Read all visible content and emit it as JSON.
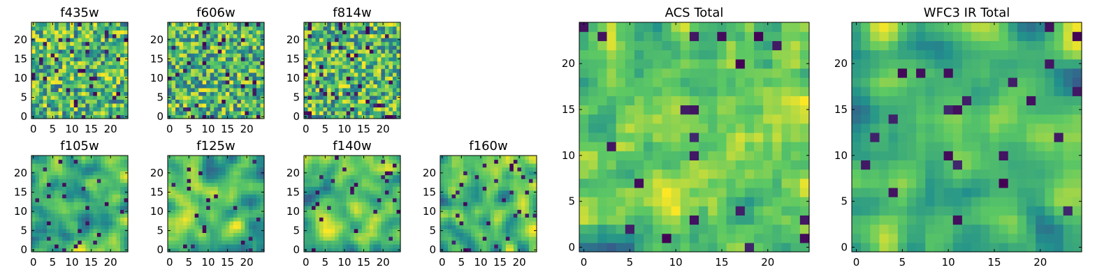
{
  "chart_data": [
    {
      "type": "heatmap",
      "title": "f435w",
      "grid": "25x25",
      "xlim": [
        0,
        24
      ],
      "ylim": [
        0,
        24
      ],
      "xticks": [
        "0",
        "5",
        "10",
        "15",
        "20"
      ],
      "yticks": [
        "0",
        "5",
        "10",
        "15",
        "20"
      ],
      "seed": 11,
      "smooth": 0,
      "dark_frac": 0.05
    },
    {
      "type": "heatmap",
      "title": "f606w",
      "grid": "25x25",
      "xlim": [
        0,
        24
      ],
      "ylim": [
        0,
        24
      ],
      "xticks": [
        "0",
        "5",
        "10",
        "15",
        "20"
      ],
      "yticks": [
        "0",
        "5",
        "10",
        "15",
        "20"
      ],
      "seed": 23,
      "smooth": 0,
      "dark_frac": 0.05
    },
    {
      "type": "heatmap",
      "title": "f814w",
      "grid": "25x25",
      "xlim": [
        0,
        24
      ],
      "ylim": [
        0,
        24
      ],
      "xticks": [
        "0",
        "5",
        "10",
        "15",
        "20"
      ],
      "yticks": [
        "0",
        "5",
        "10",
        "15",
        "20"
      ],
      "seed": 37,
      "smooth": 0,
      "dark_frac": 0.05
    },
    {
      "type": "heatmap",
      "title": "f105w",
      "grid": "25x25",
      "xlim": [
        0,
        24
      ],
      "ylim": [
        0,
        24
      ],
      "xticks": [
        "0",
        "5",
        "10",
        "15",
        "20"
      ],
      "yticks": [
        "0",
        "5",
        "10",
        "15",
        "20"
      ],
      "seed": 41,
      "smooth": 2,
      "dark_frac": 0.04
    },
    {
      "type": "heatmap",
      "title": "f125w",
      "grid": "25x25",
      "xlim": [
        0,
        24
      ],
      "ylim": [
        0,
        24
      ],
      "xticks": [
        "0",
        "5",
        "10",
        "15",
        "20"
      ],
      "yticks": [
        "0",
        "5",
        "10",
        "15",
        "20"
      ],
      "seed": 53,
      "smooth": 2,
      "dark_frac": 0.04
    },
    {
      "type": "heatmap",
      "title": "f140w",
      "grid": "25x25",
      "xlim": [
        0,
        24
      ],
      "ylim": [
        0,
        24
      ],
      "xticks": [
        "0",
        "5",
        "10",
        "15",
        "20"
      ],
      "yticks": [
        "0",
        "5",
        "10",
        "15",
        "20"
      ],
      "seed": 67,
      "smooth": 2,
      "dark_frac": 0.04
    },
    {
      "type": "heatmap",
      "title": "f160w",
      "grid": "25x25",
      "xlim": [
        0,
        24
      ],
      "ylim": [
        0,
        24
      ],
      "xticks": [
        "0",
        "5",
        "10",
        "15",
        "20"
      ],
      "yticks": [
        "0",
        "5",
        "10",
        "15",
        "20"
      ],
      "seed": 79,
      "smooth": 2,
      "dark_frac": 0.04
    },
    {
      "type": "heatmap",
      "title": "ACS Total",
      "grid": "25x25",
      "xlim": [
        0,
        24
      ],
      "ylim": [
        0,
        24
      ],
      "xticks": [
        "0",
        "5",
        "10",
        "15",
        "20"
      ],
      "yticks": [
        "0",
        "5",
        "10",
        "15",
        "20"
      ],
      "seed": 97,
      "smooth": 1,
      "dark_frac": 0.02
    },
    {
      "type": "heatmap",
      "title": "WFC3 IR Total",
      "grid": "25x25",
      "xlim": [
        0,
        24
      ],
      "ylim": [
        0,
        24
      ],
      "xticks": [
        "0",
        "5",
        "10",
        "15",
        "20"
      ],
      "yticks": [
        "0",
        "5",
        "10",
        "15",
        "20"
      ],
      "seed": 113,
      "smooth": 2,
      "dark_frac": 0.03
    }
  ],
  "colormap": [
    "#440154",
    "#3b528b",
    "#21908d",
    "#5dc963",
    "#fde725"
  ]
}
